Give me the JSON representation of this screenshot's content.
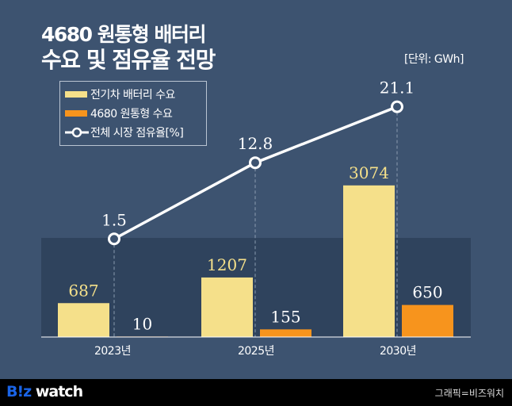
{
  "title_line1": "4680 원통형 배터리",
  "title_line2": "수요 및 점유율 전망",
  "unit": "[단위: GWh]",
  "footer": {
    "logo_blue": "B!z",
    "logo_white": "watch",
    "credit": "그래픽=비즈워치"
  },
  "chart_data": {
    "type": "bar+line",
    "categories": [
      "2023년",
      "2025년",
      "2030년"
    ],
    "series": [
      {
        "name": "전기차 배터리 수요",
        "type": "bar",
        "color": "#f5e08a",
        "values": [
          687,
          1207,
          3074
        ]
      },
      {
        "name": "4680 원통형 수요",
        "type": "bar",
        "color": "#f7941d",
        "values": [
          10,
          155,
          650
        ]
      },
      {
        "name": "전체 시장 점유율[%]",
        "type": "line",
        "color": "#ffffff",
        "values": [
          1.5,
          12.8,
          21.1
        ]
      }
    ],
    "legend": "top-left"
  }
}
